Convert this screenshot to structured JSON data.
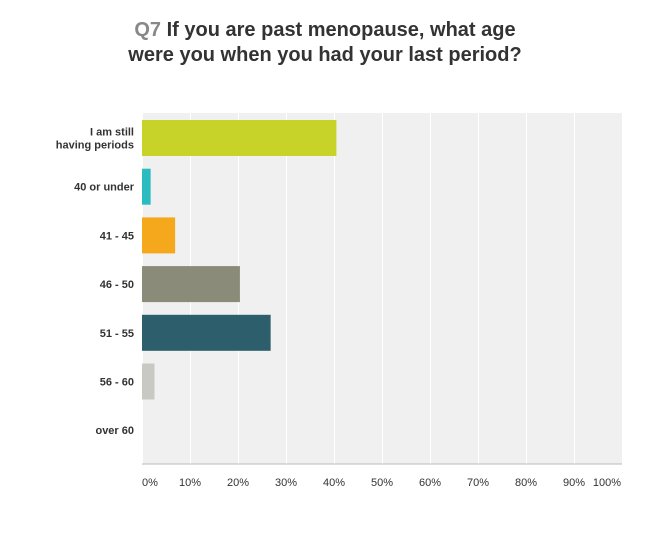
{
  "question": {
    "number": "Q7",
    "line1": "If you are past menopause, what age",
    "line2": "were you when you had your last period?"
  },
  "chart_data": {
    "type": "bar",
    "orientation": "horizontal",
    "categories": [
      [
        "I am still",
        "having periods"
      ],
      [
        "40 or under"
      ],
      [
        "41 - 45"
      ],
      [
        "46 - 50"
      ],
      [
        "51 - 55"
      ],
      [
        "56 - 60"
      ],
      [
        "over 60"
      ]
    ],
    "values": [
      40.5,
      1.8,
      6.9,
      20.4,
      26.8,
      2.6,
      0
    ],
    "colors": [
      "#c8d32a",
      "#2bbcbf",
      "#f5a81c",
      "#8a8b79",
      "#2d5e6c",
      "#c9c9c4",
      "#cccccc"
    ],
    "xlim": [
      0,
      100
    ],
    "ticks": [
      "0%",
      "10%",
      "20%",
      "30%",
      "40%",
      "50%",
      "60%",
      "70%",
      "80%",
      "90%",
      "100%"
    ],
    "tick_values": [
      0,
      10,
      20,
      30,
      40,
      50,
      60,
      70,
      80,
      90,
      100
    ],
    "grid": true,
    "plot_background": "#f0f0f0"
  }
}
